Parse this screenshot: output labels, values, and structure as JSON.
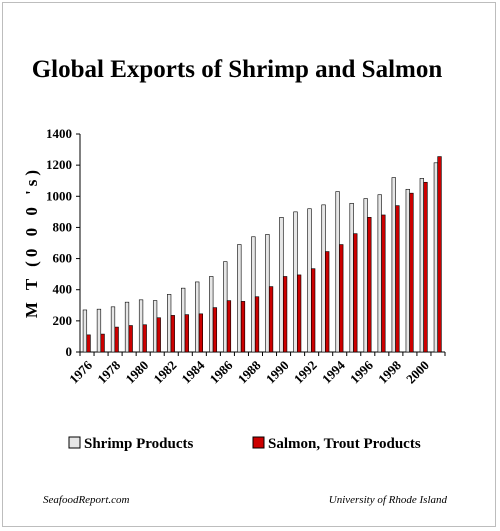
{
  "chart_data": {
    "type": "bar",
    "title": "Global Exports of Shrimp and Salmon",
    "ylabel": "M T (0 0 0 's)",
    "xlabel": "",
    "ylim": [
      0,
      1400
    ],
    "yticks": [
      0,
      200,
      400,
      600,
      800,
      1000,
      1200,
      1400
    ],
    "categories": [
      "1976",
      "1977",
      "1978",
      "1979",
      "1980",
      "1981",
      "1982",
      "1983",
      "1984",
      "1985",
      "1986",
      "1987",
      "1988",
      "1989",
      "1990",
      "1991",
      "1992",
      "1993",
      "1994",
      "1995",
      "1996",
      "1997",
      "1998",
      "1999",
      "2000",
      "2001"
    ],
    "xtick_labels": [
      "1976",
      "1978",
      "1980",
      "1982",
      "1984",
      "1986",
      "1988",
      "1990",
      "1992",
      "1994",
      "1996",
      "1998",
      "2000"
    ],
    "series": [
      {
        "name": "Shrimp Products",
        "color": "#e6e6e6",
        "values": [
          270,
          275,
          290,
          320,
          335,
          330,
          370,
          410,
          450,
          485,
          580,
          690,
          740,
          755,
          865,
          900,
          920,
          945,
          1030,
          955,
          985,
          1010,
          1120,
          1045,
          1115,
          1215
        ]
      },
      {
        "name": "Salmon, Trout Products",
        "color": "#cc0000",
        "values": [
          110,
          115,
          160,
          170,
          175,
          220,
          235,
          240,
          245,
          285,
          330,
          325,
          355,
          420,
          485,
          495,
          535,
          645,
          690,
          760,
          865,
          880,
          940,
          1020,
          1090,
          1255
        ]
      }
    ],
    "grid": false,
    "legend_position": "bottom"
  },
  "footer": {
    "left": "SeafoodReport.com",
    "right": "University of Rhode Island"
  }
}
